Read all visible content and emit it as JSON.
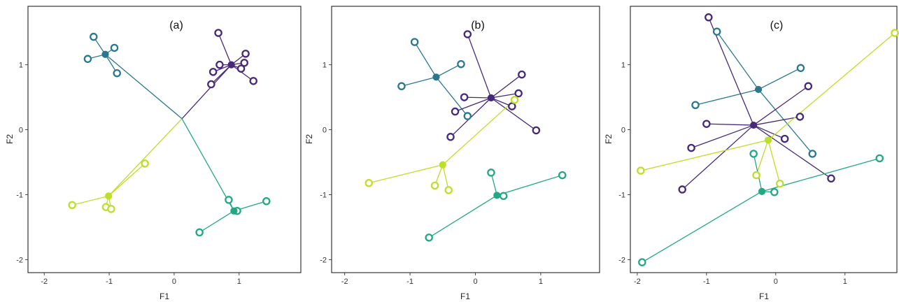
{
  "chart_data": [
    {
      "type": "scatter",
      "title": "(a)",
      "xlabel": "F1",
      "ylabel": "F2",
      "xlim": [
        -2.25,
        1.95
      ],
      "ylim": [
        -2.2,
        1.9
      ],
      "xticks": [
        -2,
        -1,
        0,
        1
      ],
      "yticks": [
        -2,
        -1,
        0,
        1
      ],
      "xtick_labels": [
        "-2",
        "-1",
        "0",
        "1"
      ],
      "ytick_labels": [
        "-2",
        "-1",
        "0",
        "1"
      ],
      "grid": false,
      "center": [
        0.12,
        0.17
      ],
      "groups": [
        {
          "color": "#2a788e",
          "centroid": [
            -1.06,
            1.16
          ],
          "points": [
            [
              -1.24,
              1.43
            ],
            [
              -0.92,
              1.26
            ],
            [
              -1.33,
              1.09
            ],
            [
              -0.88,
              0.87
            ]
          ]
        },
        {
          "color": "#482878",
          "centroid": [
            0.88,
            1.0
          ],
          "points": [
            [
              0.68,
              1.49
            ],
            [
              1.1,
              1.17
            ],
            [
              1.08,
              1.03
            ],
            [
              0.7,
              1.0
            ],
            [
              1.03,
              0.94
            ],
            [
              0.6,
              0.89
            ],
            [
              1.22,
              0.75
            ],
            [
              0.57,
              0.7
            ]
          ]
        },
        {
          "color": "#bddf26",
          "centroid": [
            -1.01,
            -1.02
          ],
          "points": [
            [
              -0.45,
              -0.52
            ],
            [
              -1.57,
              -1.16
            ],
            [
              -1.05,
              -1.19
            ],
            [
              -0.97,
              -1.22
            ]
          ]
        },
        {
          "color": "#22a884",
          "centroid": [
            0.92,
            -1.25
          ],
          "points": [
            [
              0.84,
              -1.08
            ],
            [
              1.42,
              -1.1
            ],
            [
              0.97,
              -1.25
            ],
            [
              0.39,
              -1.58
            ]
          ]
        }
      ]
    },
    {
      "type": "scatter",
      "title": "(b)",
      "xlabel": "F1",
      "ylabel": "F2",
      "xlim": [
        -2.2,
        1.9
      ],
      "ylim": [
        -2.2,
        1.9
      ],
      "xticks": [
        -2,
        -1,
        0,
        1
      ],
      "yticks": [
        -2,
        -1,
        0,
        1
      ],
      "xtick_labels": [
        "-2",
        "-1",
        "0",
        "1"
      ],
      "ytick_labels": [
        "-2",
        "-1",
        "0",
        "1"
      ],
      "grid": false,
      "groups": [
        {
          "color": "#2a788e",
          "centroid": [
            -0.6,
            0.81
          ],
          "points": [
            [
              -0.93,
              1.35
            ],
            [
              -0.22,
              1.01
            ],
            [
              -1.13,
              0.67
            ],
            [
              -0.12,
              0.21
            ]
          ]
        },
        {
          "color": "#482878",
          "centroid": [
            0.24,
            0.49
          ],
          "points": [
            [
              -0.12,
              1.47
            ],
            [
              0.71,
              0.85
            ],
            [
              0.66,
              0.56
            ],
            [
              -0.17,
              0.5
            ],
            [
              0.56,
              0.36
            ],
            [
              -0.31,
              0.28
            ],
            [
              0.93,
              -0.01
            ],
            [
              -0.38,
              -0.11
            ]
          ]
        },
        {
          "color": "#bddf26",
          "centroid": [
            -0.5,
            -0.54
          ],
          "points": [
            [
              0.6,
              0.46
            ],
            [
              -1.63,
              -0.82
            ],
            [
              -0.62,
              -0.86
            ],
            [
              -0.41,
              -0.93
            ]
          ]
        },
        {
          "color": "#22a884",
          "centroid": [
            0.33,
            -1.01
          ],
          "points": [
            [
              0.24,
              -0.66
            ],
            [
              1.33,
              -0.7
            ],
            [
              0.43,
              -1.02
            ],
            [
              -0.71,
              -1.66
            ]
          ]
        }
      ]
    },
    {
      "type": "scatter",
      "title": "(c)",
      "xlabel": "F1",
      "ylabel": "F2",
      "xlim": [
        -2.1,
        1.75
      ],
      "ylim": [
        -2.2,
        1.9
      ],
      "xticks": [
        -2,
        -1,
        0,
        1
      ],
      "yticks": [
        -2,
        -1,
        0,
        1
      ],
      "xtick_labels": [
        "-2",
        "-1",
        "0",
        "1"
      ],
      "ytick_labels": [
        "-2",
        "-1",
        "0",
        "1"
      ],
      "grid": false,
      "groups": [
        {
          "color": "#2a788e",
          "centroid": [
            -0.25,
            0.62
          ],
          "points": [
            [
              -0.85,
              1.51
            ],
            [
              0.36,
              0.95
            ],
            [
              -1.16,
              0.38
            ],
            [
              0.53,
              -0.37
            ]
          ]
        },
        {
          "color": "#482878",
          "centroid": [
            -0.32,
            0.07
          ],
          "points": [
            [
              -0.97,
              1.73
            ],
            [
              0.47,
              0.67
            ],
            [
              0.35,
              0.2
            ],
            [
              -1.0,
              0.09
            ],
            [
              0.13,
              -0.14
            ],
            [
              -1.22,
              -0.28
            ],
            [
              0.8,
              -0.75
            ],
            [
              -1.35,
              -0.92
            ]
          ]
        },
        {
          "color": "#bddf26",
          "centroid": [
            -0.11,
            -0.16
          ],
          "points": [
            [
              1.72,
              1.49
            ],
            [
              -1.95,
              -0.63
            ],
            [
              -0.28,
              -0.7
            ],
            [
              0.06,
              -0.83
            ]
          ]
        },
        {
          "color": "#22a884",
          "centroid": [
            -0.2,
            -0.95
          ],
          "points": [
            [
              -0.32,
              -0.37
            ],
            [
              1.5,
              -0.44
            ],
            [
              -0.02,
              -0.96
            ],
            [
              -1.93,
              -2.04
            ]
          ]
        }
      ]
    }
  ]
}
